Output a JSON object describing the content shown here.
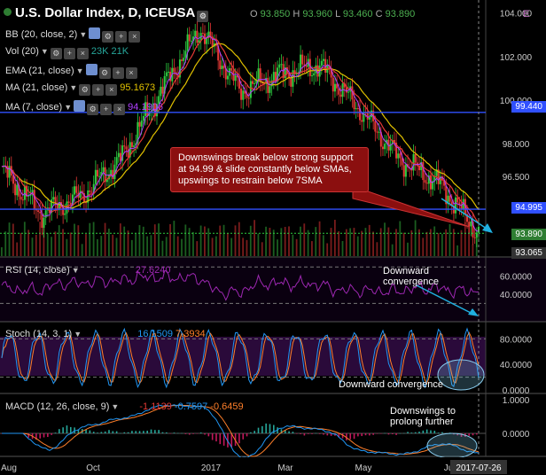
{
  "header": {
    "title": "U.S. Dollar Index, D, ICEUSA",
    "o_label": "O",
    "o": "93.850",
    "h_label": "H",
    "h": "93.960",
    "l_label": "L",
    "l": "93.460",
    "c_label": "C",
    "c": "93.890",
    "corner": "E"
  },
  "indicators": {
    "bb": "BB (20, close, 2)",
    "vol": "Vol (20)",
    "vol_v1": "23K",
    "vol_v2": "21K",
    "ema": "EMA (21, close)",
    "ma21": "MA (21, close)",
    "ma21_val": "95.1673",
    "ma7": "MA (7, close)",
    "ma7_val": "94.1906",
    "rsi": "RSI (14, close)",
    "rsi_val": "27.6240",
    "stoch": "Stoch (14, 3, 1)",
    "stoch_v1": "16.1509",
    "stoch_v2": "7.3934",
    "macd": "MACD (12, 26, close, 9)",
    "macd_v1": "-1.1139",
    "macd_v2": "-0.7597",
    "macd_v3": "-0.6459"
  },
  "annotations": {
    "main": "Downswings break below strong support at 94.99 & slide constantly below SMAs, upswings to restrain below 7SMA",
    "rsi": "Downward convergence",
    "stoch": "Downward convergence",
    "macd": "Downswings to prolong further"
  },
  "colors": {
    "up": "#26a69a",
    "down": "#e53935",
    "ema": "#e0c000",
    "ma21": "#e53935",
    "ma7": "#b040ff",
    "rsi": "#9c27b0",
    "stoch_k": "#2196f3",
    "stoch_d": "#ff7f2a",
    "macd": "#2196f3",
    "signal": "#ff7f2a",
    "support": "#3050ff",
    "arrow": "#20b0e0"
  },
  "chart_data": {
    "type": "candlestick",
    "price_axis": [
      "104.000",
      "102.000",
      "100.000",
      "98.000",
      "96.500",
      "93.065"
    ],
    "price_labels": {
      "resistance": "99.440",
      "support": "94.995",
      "last": "93.890",
      "low": "93.065"
    },
    "resistance": 99.44,
    "support": 94.995,
    "last": 93.89,
    "low_line": 93.065,
    "x_labels": [
      "Aug",
      "Oct",
      "2017",
      "Mar",
      "May",
      "Ju",
      "2017-07-26"
    ],
    "close_path": [
      {
        "m": "Jul-16",
        "v": 96.8
      },
      {
        "m": "Aug-16",
        "v": 94.8
      },
      {
        "m": "Sep-16",
        "v": 95.6
      },
      {
        "m": "Oct-16",
        "v": 97.3
      },
      {
        "m": "Nov-16",
        "v": 100.4
      },
      {
        "m": "Dec-16",
        "v": 103.3
      },
      {
        "m": "Jan-17",
        "v": 100.4
      },
      {
        "m": "Feb-17",
        "v": 101.2
      },
      {
        "m": "Mar-17",
        "v": 101.6
      },
      {
        "m": "Apr-17",
        "v": 99.6
      },
      {
        "m": "May-17",
        "v": 97.3
      },
      {
        "m": "Jun-17",
        "v": 96.2
      },
      {
        "m": "Jul-17",
        "v": 93.9
      }
    ],
    "rsi_axis": [
      "60.0000",
      "40.0000"
    ],
    "stoch_axis": [
      "80.0000",
      "40.0000",
      "0.0000"
    ],
    "macd_axis": [
      "1.0000",
      "0.0000"
    ],
    "rsi": {
      "last": 27.624
    },
    "stoch": {
      "k": 16.1509,
      "d": 7.3934
    },
    "macd": {
      "macd": -1.1139,
      "signal": -0.7597,
      "hist": -0.6459
    }
  }
}
